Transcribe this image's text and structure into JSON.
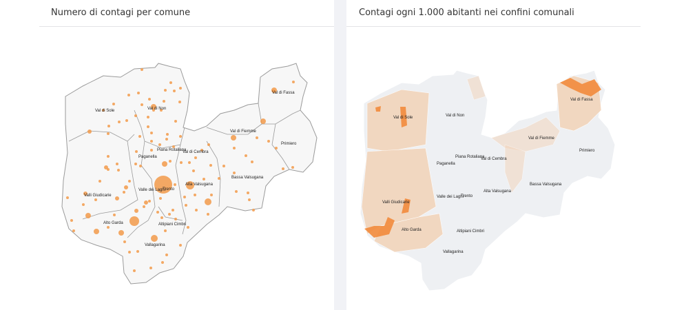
{
  "left_panel": {
    "title": "Numero di contagi per comune",
    "regions": [
      "Val di Sole",
      "Val di Non",
      "Val di Fassa",
      "Val di Fiemme",
      "Primiero",
      "Piana Rotaliana",
      "Val di Cembra",
      "Paganella",
      "Valli Giudicarie",
      "Valle dei Laghi",
      "Trento",
      "Alta Valsugana",
      "Bassa Valsugana",
      "Alto Garda",
      "Altipiani Cimbri",
      "Vallagarina"
    ]
  },
  "right_panel": {
    "title": "Contagi ogni 1.000 abitanti nei confini comunali",
    "regions": [
      "Val di Sole",
      "Val di Non",
      "Val di Fassa",
      "Val di Fiemme",
      "Primiero",
      "Piana Rotaliana",
      "Val di Cembra",
      "Paganella",
      "Valli Giudicarie",
      "Valle dei Laghi",
      "Trento",
      "Alta Valsugana",
      "Bassa Valsugana",
      "Alto Garda",
      "Altipiani Cimbri",
      "Vallagarina"
    ]
  },
  "colors": {
    "bubble": "#f29a4a",
    "map_fill": "#f7f7f7",
    "border": "#9a9a9a",
    "choropleth_low": "#eef0f3",
    "choropleth_mid": "#f2d3b8",
    "choropleth_high": "#f28b3c"
  }
}
